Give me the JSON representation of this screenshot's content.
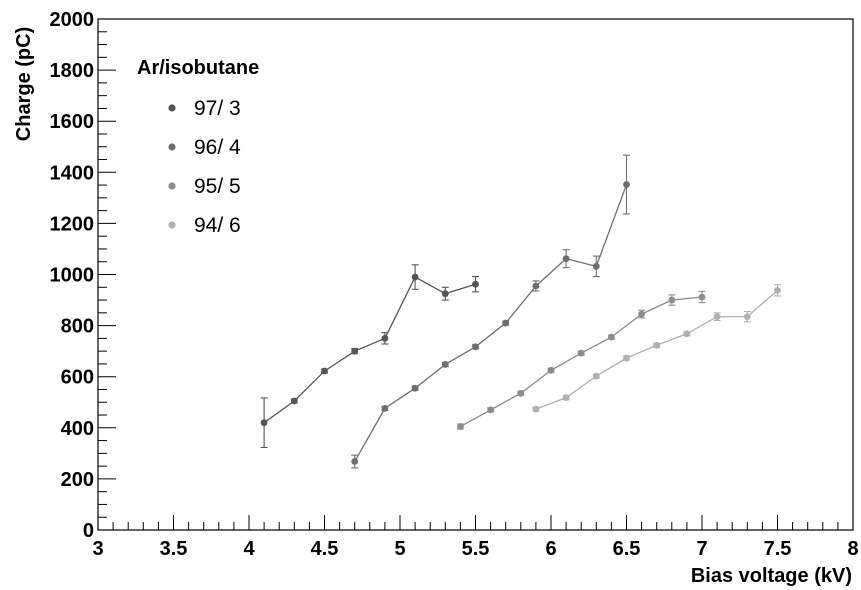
{
  "chart_data": {
    "type": "scatter",
    "xlabel": "Bias voltage (kV)",
    "ylabel": "Charge (pC)",
    "xlim": [
      3,
      8
    ],
    "ylim": [
      0,
      2000
    ],
    "x_ticks": [
      "3",
      "3.5",
      "4",
      "4.5",
      "5",
      "5.5",
      "6",
      "6.5",
      "7",
      "7.5",
      "8"
    ],
    "y_ticks": [
      "0",
      "200",
      "400",
      "600",
      "800",
      "1000",
      "1200",
      "1400",
      "1600",
      "1800",
      "2000"
    ],
    "grid": false,
    "legend": {
      "title": "Ar/isobutane",
      "placement": "top-left"
    },
    "series": [
      {
        "name": "97/ 3",
        "color": "#555555",
        "x": [
          4.1,
          4.3,
          4.5,
          4.7,
          4.9,
          5.1,
          5.3,
          5.5
        ],
        "y": [
          420,
          505,
          622,
          700,
          750,
          990,
          925,
          962
        ],
        "err": [
          97,
          8,
          8,
          10,
          22,
          48,
          25,
          30
        ]
      },
      {
        "name": "96/ 4",
        "color": "#6e6e6e",
        "x": [
          4.7,
          4.9,
          5.1,
          5.3,
          5.5,
          5.7,
          5.9,
          6.1,
          6.3,
          6.5
        ],
        "y": [
          268,
          476,
          555,
          648,
          717,
          810,
          955,
          1062,
          1032,
          1352
        ],
        "err": [
          25,
          8,
          8,
          8,
          8,
          8,
          20,
          35,
          40,
          115
        ]
      },
      {
        "name": "95/ 5",
        "color": "#8c8c8c",
        "x": [
          5.4,
          5.6,
          5.8,
          6.0,
          6.2,
          6.4,
          6.6,
          6.8,
          7.0
        ],
        "y": [
          405,
          470,
          535,
          625,
          692,
          755,
          845,
          900,
          912
        ],
        "err": [
          10,
          8,
          8,
          8,
          8,
          8,
          15,
          20,
          22
        ]
      },
      {
        "name": "94/ 6",
        "color": "#b0b0b0",
        "x": [
          5.9,
          6.1,
          6.3,
          6.5,
          6.7,
          6.9,
          7.1,
          7.3,
          7.5
        ],
        "y": [
          473,
          518,
          602,
          673,
          723,
          768,
          835,
          835,
          938
        ],
        "err": [
          8,
          8,
          8,
          8,
          8,
          8,
          15,
          20,
          22
        ]
      }
    ]
  }
}
